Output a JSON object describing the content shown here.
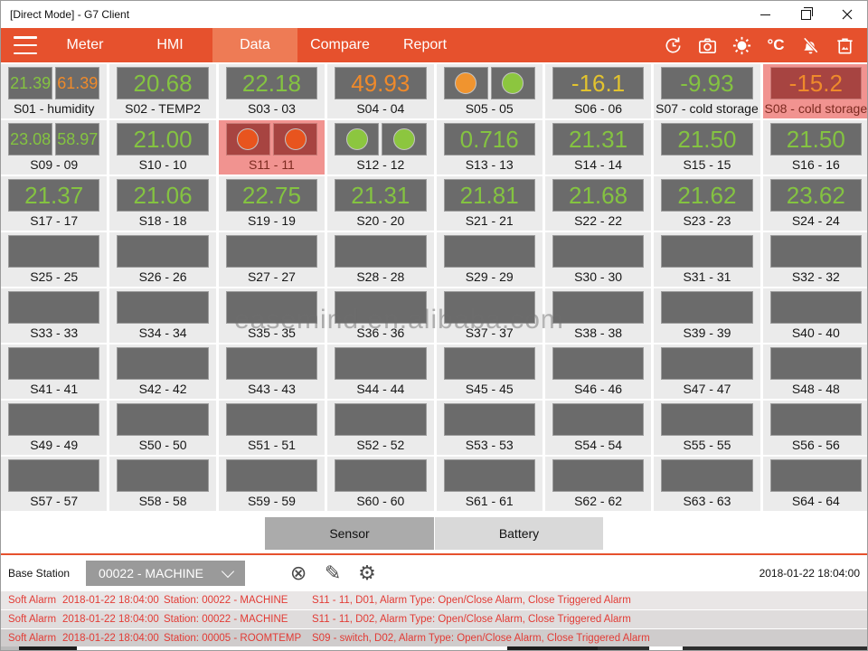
{
  "window": {
    "title": "[Direct Mode] - G7 Client"
  },
  "nav": {
    "tabs": [
      {
        "label": "Meter"
      },
      {
        "label": "HMI"
      },
      {
        "label": "Data"
      },
      {
        "label": "Compare"
      },
      {
        "label": "Report"
      }
    ],
    "active_tab": "Data",
    "celsius_label": "°C"
  },
  "icons": {
    "cancel": "⊗",
    "edit": "✎",
    "settings": "⚙"
  },
  "colors": {
    "accent_orange": "#E6512D",
    "active_tab": "#EE7B55",
    "value_green": "#84C341",
    "value_orange": "#EF8A2B",
    "value_yellow": "#E2C32F",
    "box_gray": "#6B6B6B",
    "tile_bg": "#EBEBEB",
    "alarm_tile_bg": "#F19390",
    "alarm_box_bg": "#A74441",
    "alarm_label": "#7C2A20",
    "alarm_text_red": "#E23B35",
    "dot_green": "#8CC63F",
    "dot_orange": "#F0942F",
    "dot_red": "#E8541E"
  },
  "grid": {
    "tiles": [
      {
        "label": "S01 - humidity",
        "alarm": false,
        "cells": [
          {
            "value": "21.39",
            "color": "green"
          },
          {
            "value": "61.39",
            "color": "orange"
          }
        ]
      },
      {
        "label": "S02 - TEMP2",
        "alarm": false,
        "cells": [
          {
            "value": "20.68",
            "color": "green"
          }
        ]
      },
      {
        "label": "S03 - 03",
        "alarm": false,
        "cells": [
          {
            "value": "22.18",
            "color": "green"
          }
        ]
      },
      {
        "label": "S04 - 04",
        "alarm": false,
        "cells": [
          {
            "value": "49.93",
            "color": "orange"
          }
        ]
      },
      {
        "label": "S05 - 05",
        "alarm": false,
        "cells": [
          {
            "dot": "orange"
          },
          {
            "dot": "green"
          }
        ]
      },
      {
        "label": "S06 - 06",
        "alarm": false,
        "cells": [
          {
            "value": "-16.1",
            "color": "yellow"
          }
        ]
      },
      {
        "label": "S07 - cold storage",
        "alarm": false,
        "cells": [
          {
            "value": "-9.93",
            "color": "green"
          }
        ]
      },
      {
        "label": "S08 - cold storage",
        "alarm": true,
        "cells": [
          {
            "value": "-15.2",
            "color": "orange"
          }
        ]
      },
      {
        "label": "S09 - 09",
        "alarm": false,
        "cells": [
          {
            "value": "23.08",
            "color": "green"
          },
          {
            "value": "58.97",
            "color": "green"
          }
        ]
      },
      {
        "label": "S10 - 10",
        "alarm": false,
        "cells": [
          {
            "value": "21.00",
            "color": "green"
          }
        ]
      },
      {
        "label": "S11 - 11",
        "alarm": true,
        "cells": [
          {
            "dot": "red"
          },
          {
            "dot": "red"
          }
        ]
      },
      {
        "label": "S12 - 12",
        "alarm": false,
        "cells": [
          {
            "dot": "green"
          },
          {
            "dot": "green"
          }
        ]
      },
      {
        "label": "S13 - 13",
        "alarm": false,
        "cells": [
          {
            "value": "0.716",
            "color": "green"
          }
        ]
      },
      {
        "label": "S14 - 14",
        "alarm": false,
        "cells": [
          {
            "value": "21.31",
            "color": "green"
          }
        ]
      },
      {
        "label": "S15 - 15",
        "alarm": false,
        "cells": [
          {
            "value": "21.50",
            "color": "green"
          }
        ]
      },
      {
        "label": "S16 - 16",
        "alarm": false,
        "cells": [
          {
            "value": "21.50",
            "color": "green"
          }
        ]
      },
      {
        "label": "S17 - 17",
        "alarm": false,
        "cells": [
          {
            "value": "21.37",
            "color": "green"
          }
        ]
      },
      {
        "label": "S18 - 18",
        "alarm": false,
        "cells": [
          {
            "value": "21.06",
            "color": "green"
          }
        ]
      },
      {
        "label": "S19 - 19",
        "alarm": false,
        "cells": [
          {
            "value": "22.75",
            "color": "green"
          }
        ]
      },
      {
        "label": "S20 - 20",
        "alarm": false,
        "cells": [
          {
            "value": "21.31",
            "color": "green"
          }
        ]
      },
      {
        "label": "S21 - 21",
        "alarm": false,
        "cells": [
          {
            "value": "21.81",
            "color": "green"
          }
        ]
      },
      {
        "label": "S22 - 22",
        "alarm": false,
        "cells": [
          {
            "value": "21.68",
            "color": "green"
          }
        ]
      },
      {
        "label": "S23 - 23",
        "alarm": false,
        "cells": [
          {
            "value": "21.62",
            "color": "green"
          }
        ]
      },
      {
        "label": "S24 - 24",
        "alarm": false,
        "cells": [
          {
            "value": "23.62",
            "color": "green"
          }
        ]
      },
      {
        "label": "S25 - 25",
        "alarm": false,
        "cells": [
          {}
        ]
      },
      {
        "label": "S26 - 26",
        "alarm": false,
        "cells": [
          {}
        ]
      },
      {
        "label": "S27 - 27",
        "alarm": false,
        "cells": [
          {}
        ]
      },
      {
        "label": "S28 - 28",
        "alarm": false,
        "cells": [
          {}
        ]
      },
      {
        "label": "S29 - 29",
        "alarm": false,
        "cells": [
          {}
        ]
      },
      {
        "label": "S30 - 30",
        "alarm": false,
        "cells": [
          {}
        ]
      },
      {
        "label": "S31 - 31",
        "alarm": false,
        "cells": [
          {}
        ]
      },
      {
        "label": "S32 - 32",
        "alarm": false,
        "cells": [
          {}
        ]
      },
      {
        "label": "S33 - 33",
        "alarm": false,
        "cells": [
          {}
        ]
      },
      {
        "label": "S34 - 34",
        "alarm": false,
        "cells": [
          {}
        ]
      },
      {
        "label": "S35 - 35",
        "alarm": false,
        "cells": [
          {}
        ]
      },
      {
        "label": "S36 - 36",
        "alarm": false,
        "cells": [
          {}
        ]
      },
      {
        "label": "S37 - 37",
        "alarm": false,
        "cells": [
          {}
        ]
      },
      {
        "label": "S38 - 38",
        "alarm": false,
        "cells": [
          {}
        ]
      },
      {
        "label": "S39 - 39",
        "alarm": false,
        "cells": [
          {}
        ]
      },
      {
        "label": "S40 - 40",
        "alarm": false,
        "cells": [
          {}
        ]
      },
      {
        "label": "S41 - 41",
        "alarm": false,
        "cells": [
          {}
        ]
      },
      {
        "label": "S42 - 42",
        "alarm": false,
        "cells": [
          {}
        ]
      },
      {
        "label": "S43 - 43",
        "alarm": false,
        "cells": [
          {}
        ]
      },
      {
        "label": "S44 - 44",
        "alarm": false,
        "cells": [
          {}
        ]
      },
      {
        "label": "S45 - 45",
        "alarm": false,
        "cells": [
          {}
        ]
      },
      {
        "label": "S46 - 46",
        "alarm": false,
        "cells": [
          {}
        ]
      },
      {
        "label": "S47 - 47",
        "alarm": false,
        "cells": [
          {}
        ]
      },
      {
        "label": "S48 - 48",
        "alarm": false,
        "cells": [
          {}
        ]
      },
      {
        "label": "S49 - 49",
        "alarm": false,
        "cells": [
          {}
        ]
      },
      {
        "label": "S50 - 50",
        "alarm": false,
        "cells": [
          {}
        ]
      },
      {
        "label": "S51 - 51",
        "alarm": false,
        "cells": [
          {}
        ]
      },
      {
        "label": "S52 - 52",
        "alarm": false,
        "cells": [
          {}
        ]
      },
      {
        "label": "S53 - 53",
        "alarm": false,
        "cells": [
          {}
        ]
      },
      {
        "label": "S54 - 54",
        "alarm": false,
        "cells": [
          {}
        ]
      },
      {
        "label": "S55 - 55",
        "alarm": false,
        "cells": [
          {}
        ]
      },
      {
        "label": "S56 - 56",
        "alarm": false,
        "cells": [
          {}
        ]
      },
      {
        "label": "S57 - 57",
        "alarm": false,
        "cells": [
          {}
        ]
      },
      {
        "label": "S58 - 58",
        "alarm": false,
        "cells": [
          {}
        ]
      },
      {
        "label": "S59 - 59",
        "alarm": false,
        "cells": [
          {}
        ]
      },
      {
        "label": "S60 - 60",
        "alarm": false,
        "cells": [
          {}
        ]
      },
      {
        "label": "S61 - 61",
        "alarm": false,
        "cells": [
          {}
        ]
      },
      {
        "label": "S62 - 62",
        "alarm": false,
        "cells": [
          {}
        ]
      },
      {
        "label": "S63 - 63",
        "alarm": false,
        "cells": [
          {}
        ]
      },
      {
        "label": "S64 - 64",
        "alarm": false,
        "cells": [
          {}
        ]
      }
    ]
  },
  "watermark": "easemind.en.alibaba.com",
  "footer": {
    "sensor_label": "Sensor",
    "battery_label": "Battery"
  },
  "station_bar": {
    "label": "Base Station",
    "selected": "00022 - MACHINE",
    "timestamp": "2018-01-22 18:04:00"
  },
  "alarms": [
    {
      "severity": "Soft Alarm",
      "time": "2018-01-22 18:04:00",
      "station": "Station: 00022 - MACHINE",
      "detail": "S11 - 11, D01, Alarm Type: Open/Close Alarm, Close Triggered Alarm"
    },
    {
      "severity": "Soft Alarm",
      "time": "2018-01-22 18:04:00",
      "station": "Station: 00022 - MACHINE",
      "detail": "S11 - 11, D02, Alarm Type: Open/Close Alarm, Close Triggered Alarm"
    },
    {
      "severity": "Soft Alarm",
      "time": "2018-01-22 18:04:00",
      "station": "Station: 00005 - ROOMTEMP",
      "detail": "S09 - switch, D02, Alarm Type: Open/Close Alarm, Close Triggered Alarm"
    }
  ]
}
